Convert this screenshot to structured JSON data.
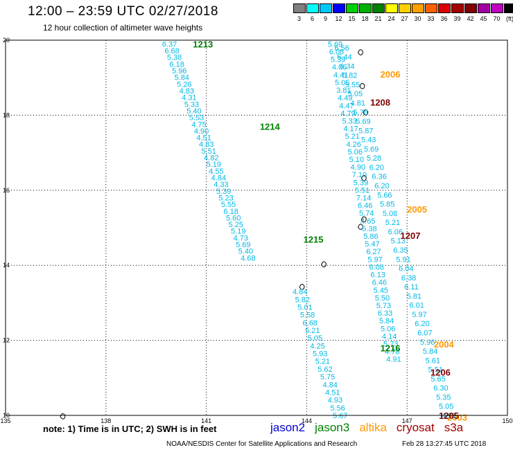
{
  "header": {
    "title": "12:00 – 23:59 UTC 02/27/2018",
    "subtitle": "12 hour collection of altimeter wave heights"
  },
  "colorbar": {
    "colors": [
      "#808080",
      "#00ffff",
      "#00c8ff",
      "#0000ff",
      "#00d000",
      "#00b000",
      "#008000",
      "#ffff00",
      "#ffd000",
      "#ffa000",
      "#ff6000",
      "#e00000",
      "#a00000",
      "#800000",
      "#a000a0",
      "#c000c0",
      "#000000"
    ],
    "labels": [
      "3",
      "6",
      "9",
      "12",
      "15",
      "18",
      "21",
      "24",
      "27",
      "30",
      "33",
      "36",
      "39",
      "42",
      "45",
      "70",
      "(ft)"
    ]
  },
  "footer": {
    "note": "note: 1) Time is in UTC; 2) SWH is in feet",
    "credit": "NOAA/NESDIS Center for Satellite Applications and Research",
    "timestamp": "Feb 28 13:27:45 UTC 2018"
  },
  "chart_data": {
    "type": "scatter",
    "xlim": [
      135,
      150
    ],
    "ylim": [
      10,
      20
    ],
    "x_ticks": [
      "135",
      "138",
      "141",
      "144",
      "147",
      "150"
    ],
    "y_ticks": [
      "20",
      "18",
      "16",
      "14",
      "12",
      "10"
    ],
    "grid": true,
    "legend": [
      {
        "name": "jason2",
        "color": "#0000d0"
      },
      {
        "name": "jason3",
        "color": "#008000"
      },
      {
        "name": "altika",
        "color": "#ff9900"
      },
      {
        "name": "cryosat",
        "color": "#a00000"
      },
      {
        "name": "s3a",
        "color": "#a00000"
      }
    ],
    "pass_labels": [
      {
        "text": "1213",
        "color": "#008000",
        "x": 140.6,
        "y": 19.9
      },
      {
        "text": "1214",
        "color": "#008000",
        "x": 142.6,
        "y": 17.7
      },
      {
        "text": "1215",
        "color": "#008000",
        "x": 143.9,
        "y": 14.7
      },
      {
        "text": "1216",
        "color": "#008000",
        "x": 146.2,
        "y": 11.8
      },
      {
        "text": "2006",
        "color": "#ff9900",
        "x": 146.2,
        "y": 19.1
      },
      {
        "text": "2005",
        "color": "#ff9900",
        "x": 147.0,
        "y": 15.5
      },
      {
        "text": "2004",
        "color": "#ff9900",
        "x": 147.8,
        "y": 11.9
      },
      {
        "text": "2003",
        "color": "#ff9900",
        "x": 148.2,
        "y": 9.95
      },
      {
        "text": "1208",
        "color": "#800000",
        "x": 145.9,
        "y": 18.35
      },
      {
        "text": "1207",
        "color": "#800000",
        "x": 146.8,
        "y": 14.8
      },
      {
        "text": "1206",
        "color": "#800000",
        "x": 147.7,
        "y": 11.15
      },
      {
        "text": "1205",
        "color": "#800000",
        "x": 147.95,
        "y": 10.0
      }
    ],
    "tracks": [
      {
        "satellite": "jason3",
        "x_start": 139.9,
        "y_start": 19.9,
        "x_end": 142.25,
        "y_end": 14.2,
        "values": [
          "6.37",
          "6.68",
          "5.38",
          "6.18",
          "5.96",
          "5.84",
          "5.26",
          "4.83",
          "4.31",
          "5.33",
          "5.40",
          "5.53",
          "4.75",
          "4.90",
          "4.51",
          "4.83",
          "5.51",
          "4.82",
          "5.19",
          "4.55",
          "4.84",
          "4.33",
          "5.39",
          "5.23",
          "5.55",
          "6.18",
          "5.60",
          "5.25",
          "5.19",
          "4.73",
          "5.69",
          "5.40",
          "4.68"
        ]
      },
      {
        "satellite": "jason3",
        "x_start": 143.8,
        "y_start": 13.3,
        "x_end": 145.0,
        "y_end": 10.0,
        "values": [
          "4.84",
          "5.82",
          "5.01",
          "5.58",
          "6.68",
          "5.21",
          "5.05",
          "4.25",
          "5.93",
          "5.21",
          "5.62",
          "5.75",
          "4.84",
          "4.51",
          "4.93",
          "5.56",
          "5.67"
        ]
      },
      {
        "satellite": "altika",
        "x_start": 144.85,
        "y_start": 19.9,
        "x_end": 146.6,
        "y_end": 11.5,
        "values": [
          "5.69",
          "6.08",
          "5.39",
          "4.06",
          "4.41",
          "5.05",
          "3.81",
          "4.49",
          "4.47",
          "4.79",
          "5.33",
          "4.17",
          "5.21",
          "4.26",
          "5.06",
          "5.10",
          "4.90",
          "7.10",
          "5.39",
          "5.51",
          "7.14",
          "6.46",
          "5.74",
          "4.65",
          "5.38",
          "5.86",
          "5.47",
          "6.27",
          "5.97",
          "6.08",
          "6.13",
          "6.46",
          "5.45",
          "5.50",
          "5.73",
          "6.33",
          "5.84",
          "5.06",
          "4.14",
          "5.73",
          "4.78",
          "4.91"
        ]
      },
      {
        "satellite": "cryosat",
        "x_start": 145.05,
        "y_start": 19.8,
        "x_end": 148.25,
        "y_end": 10.0,
        "values": [
          "6.56",
          "6.44",
          "6.34",
          "5.82",
          "5.55",
          "5.05",
          "4.81",
          "5.76",
          "5.69",
          "5.87",
          "5.43",
          "5.69",
          "5.28",
          "6.20",
          "6.36",
          "6.20",
          "5.66",
          "5.85",
          "5.08",
          "5.21",
          "6.06",
          "5.13",
          "6.35",
          "5.91",
          "6.04",
          "6.38",
          "6.11",
          "5.81",
          "6.01",
          "5.97",
          "6.20",
          "6.07",
          "5.96",
          "5.84",
          "5.61",
          "5.51",
          "5.65",
          "6.30",
          "5.35",
          "5.05",
          "4.91"
        ]
      }
    ],
    "islands": [
      {
        "x": 143.85,
        "y": 13.45
      },
      {
        "x": 144.5,
        "y": 14.05
      },
      {
        "x": 145.6,
        "y": 15.05
      },
      {
        "x": 145.7,
        "y": 15.25
      },
      {
        "x": 145.7,
        "y": 16.35
      },
      {
        "x": 145.75,
        "y": 18.1
      },
      {
        "x": 145.65,
        "y": 18.8
      },
      {
        "x": 145.6,
        "y": 19.7
      },
      {
        "x": 136.7,
        "y": 10.0
      }
    ]
  }
}
